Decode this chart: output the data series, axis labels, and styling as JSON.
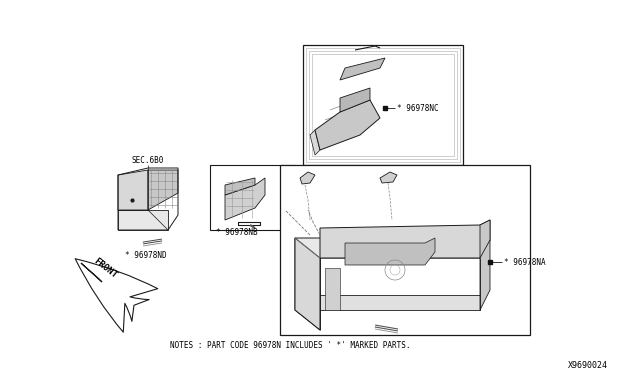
{
  "bg_color": "#ffffff",
  "fig_width": 6.4,
  "fig_height": 3.72,
  "dpi": 100,
  "notes_text": "NOTES : PART CODE 96978N INCLUDES ' *' MARKED PARTS.",
  "diagram_id": "X9690024",
  "labels": {
    "sec680": "SEC.6B0",
    "nb": "* 96978NB",
    "nc": "* 96978NC",
    "nd": "* 96978ND",
    "na": "* 96978NA",
    "front": "FRONT"
  },
  "font_size_labels": 5.5,
  "font_size_notes": 5.5,
  "font_size_id": 6,
  "text_color": "#000000",
  "line_color": "#1a1a1a",
  "part_fill": "#d8d8d8",
  "part_fill2": "#e8e8e8",
  "white_fill": "#ffffff"
}
